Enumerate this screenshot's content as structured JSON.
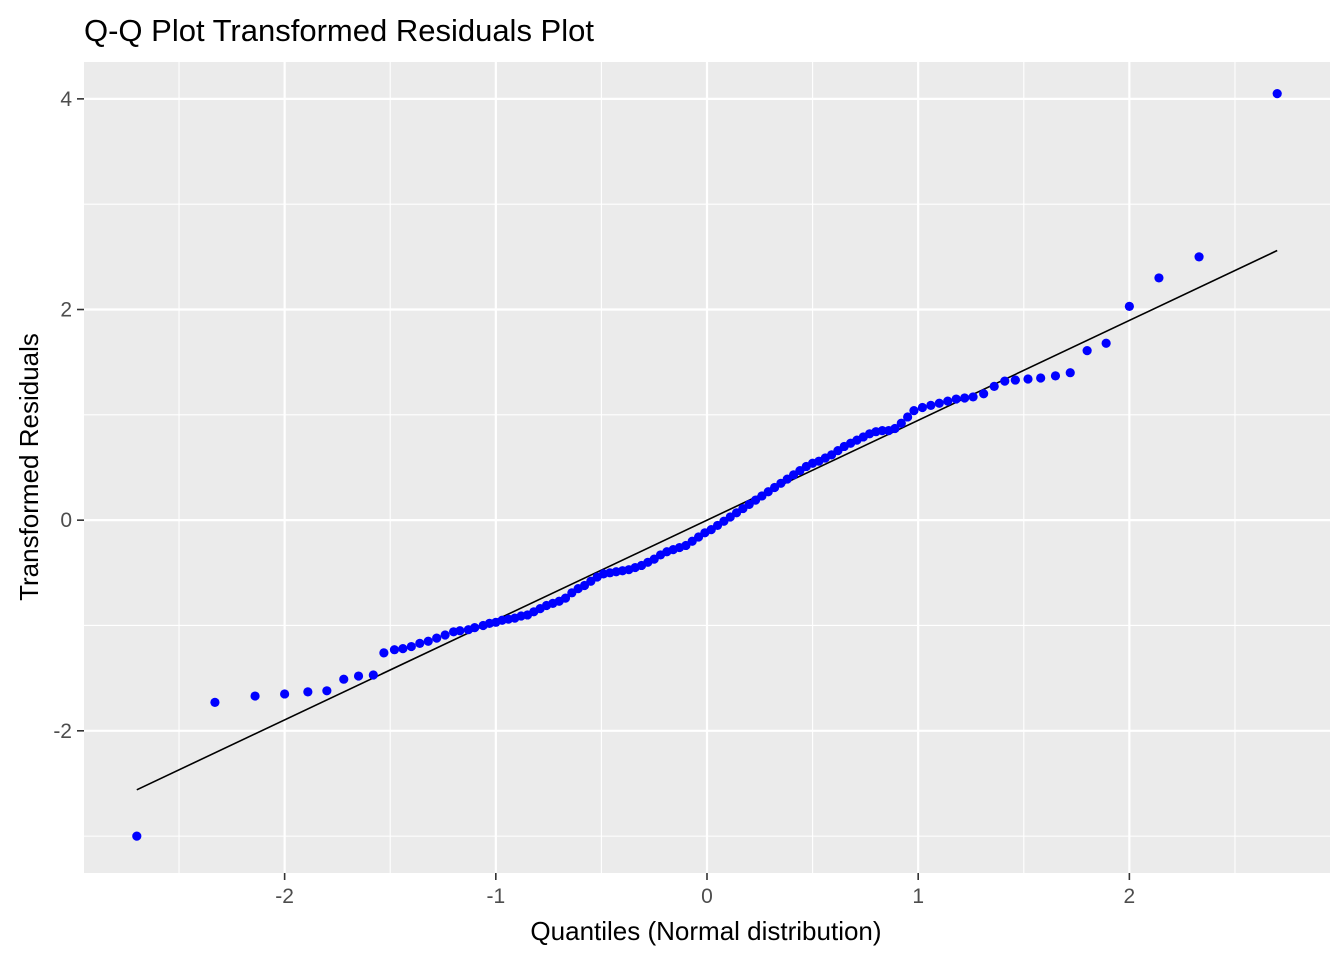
{
  "chart_data": {
    "type": "scatter",
    "title": "Q-Q Plot Transformed Residuals Plot",
    "xlabel": "Quantiles (Normal distribution)",
    "ylabel": "Transformed Residuals",
    "xlim": [
      -2.95,
      2.95
    ],
    "ylim": [
      -3.35,
      4.35
    ],
    "x_ticks": [
      -2,
      -1,
      0,
      1,
      2
    ],
    "x_tick_labels": [
      "-2",
      "-1",
      "0",
      "1",
      "2"
    ],
    "y_ticks": [
      -2,
      0,
      2,
      4
    ],
    "y_tick_labels": [
      "-2",
      "0",
      "2",
      "4"
    ],
    "grid": true,
    "background": "#ebebeb",
    "point_color": "#0000ff",
    "line_color": "#000000",
    "reference_line": {
      "x": [
        -2.7,
        2.7
      ],
      "y": [
        -2.56,
        2.56
      ]
    },
    "series": [
      {
        "points": [
          [
            -2.7,
            -3.0
          ],
          [
            -2.33,
            -1.73
          ],
          [
            -2.14,
            -1.67
          ],
          [
            -2.0,
            -1.65
          ],
          [
            -1.89,
            -1.63
          ],
          [
            -1.8,
            -1.62
          ],
          [
            -1.72,
            -1.51
          ],
          [
            -1.65,
            -1.48
          ],
          [
            -1.58,
            -1.47
          ],
          [
            -1.53,
            -1.26
          ],
          [
            -1.48,
            -1.23
          ],
          [
            -1.44,
            -1.22
          ],
          [
            -1.4,
            -1.2
          ],
          [
            -1.36,
            -1.17
          ],
          [
            -1.32,
            -1.15
          ],
          [
            -1.28,
            -1.12
          ],
          [
            -1.24,
            -1.09
          ],
          [
            -1.2,
            -1.06
          ],
          [
            -1.17,
            -1.05
          ],
          [
            -1.13,
            -1.04
          ],
          [
            -1.1,
            -1.02
          ],
          [
            -1.06,
            -1.0
          ],
          [
            -1.03,
            -0.98
          ],
          [
            -1.0,
            -0.97
          ],
          [
            -0.97,
            -0.95
          ],
          [
            -0.94,
            -0.94
          ],
          [
            -0.91,
            -0.93
          ],
          [
            -0.88,
            -0.91
          ],
          [
            -0.85,
            -0.9
          ],
          [
            -0.82,
            -0.87
          ],
          [
            -0.79,
            -0.84
          ],
          [
            -0.76,
            -0.81
          ],
          [
            -0.73,
            -0.79
          ],
          [
            -0.7,
            -0.77
          ],
          [
            -0.67,
            -0.74
          ],
          [
            -0.64,
            -0.69
          ],
          [
            -0.61,
            -0.65
          ],
          [
            -0.58,
            -0.62
          ],
          [
            -0.55,
            -0.58
          ],
          [
            -0.52,
            -0.54
          ],
          [
            -0.49,
            -0.51
          ],
          [
            -0.46,
            -0.5
          ],
          [
            -0.43,
            -0.49
          ],
          [
            -0.4,
            -0.48
          ],
          [
            -0.37,
            -0.47
          ],
          [
            -0.34,
            -0.45
          ],
          [
            -0.31,
            -0.43
          ],
          [
            -0.28,
            -0.4
          ],
          [
            -0.25,
            -0.37
          ],
          [
            -0.22,
            -0.33
          ],
          [
            -0.19,
            -0.3
          ],
          [
            -0.16,
            -0.28
          ],
          [
            -0.13,
            -0.26
          ],
          [
            -0.1,
            -0.24
          ],
          [
            -0.07,
            -0.2
          ],
          [
            -0.04,
            -0.16
          ],
          [
            -0.01,
            -0.12
          ],
          [
            0.02,
            -0.09
          ],
          [
            0.05,
            -0.05
          ],
          [
            0.08,
            -0.01
          ],
          [
            0.11,
            0.03
          ],
          [
            0.14,
            0.07
          ],
          [
            0.17,
            0.11
          ],
          [
            0.2,
            0.15
          ],
          [
            0.23,
            0.19
          ],
          [
            0.26,
            0.23
          ],
          [
            0.29,
            0.27
          ],
          [
            0.32,
            0.31
          ],
          [
            0.35,
            0.35
          ],
          [
            0.38,
            0.39
          ],
          [
            0.41,
            0.43
          ],
          [
            0.44,
            0.47
          ],
          [
            0.47,
            0.51
          ],
          [
            0.5,
            0.54
          ],
          [
            0.53,
            0.56
          ],
          [
            0.56,
            0.59
          ],
          [
            0.59,
            0.62
          ],
          [
            0.62,
            0.66
          ],
          [
            0.65,
            0.7
          ],
          [
            0.68,
            0.73
          ],
          [
            0.71,
            0.76
          ],
          [
            0.74,
            0.79
          ],
          [
            0.77,
            0.82
          ],
          [
            0.8,
            0.84
          ],
          [
            0.83,
            0.85
          ],
          [
            0.86,
            0.85
          ],
          [
            0.89,
            0.87
          ],
          [
            0.92,
            0.92
          ],
          [
            0.95,
            0.98
          ],
          [
            0.98,
            1.04
          ],
          [
            1.02,
            1.07
          ],
          [
            1.06,
            1.09
          ],
          [
            1.1,
            1.11
          ],
          [
            1.14,
            1.13
          ],
          [
            1.18,
            1.15
          ],
          [
            1.22,
            1.16
          ],
          [
            1.26,
            1.17
          ],
          [
            1.31,
            1.2
          ],
          [
            1.36,
            1.27
          ],
          [
            1.41,
            1.32
          ],
          [
            1.46,
            1.33
          ],
          [
            1.52,
            1.34
          ],
          [
            1.58,
            1.35
          ],
          [
            1.65,
            1.37
          ],
          [
            1.72,
            1.4
          ],
          [
            1.8,
            1.61
          ],
          [
            1.89,
            1.68
          ],
          [
            2.0,
            2.03
          ],
          [
            2.14,
            2.3
          ],
          [
            2.33,
            2.5
          ],
          [
            2.7,
            4.05
          ]
        ]
      }
    ]
  }
}
